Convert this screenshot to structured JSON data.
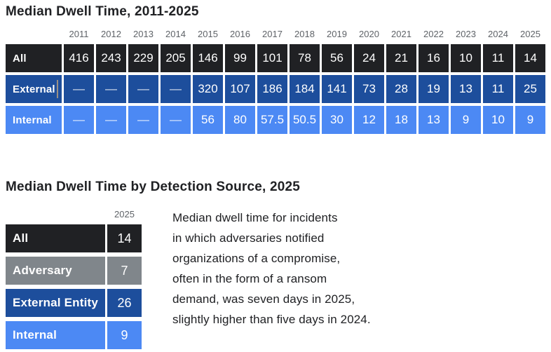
{
  "colors": {
    "row_black": "#202124",
    "row_gray": "#80868b",
    "row_dark_blue": "#1d4e9c",
    "row_light_blue": "#4c89f4",
    "year_text": "#5f6368",
    "title_text": "#202124",
    "body_text": "#202124",
    "caret": "#9c9184"
  },
  "section1": {
    "title": "Median Dwell Time, 2011-2025",
    "years": [
      "2011",
      "2012",
      "2013",
      "2014",
      "2015",
      "2016",
      "2017",
      "2018",
      "2019",
      "2020",
      "2021",
      "2022",
      "2023",
      "2024",
      "2025"
    ],
    "rows": [
      {
        "label": "All",
        "style": "row-black",
        "has_caret": false,
        "values": [
          "416",
          "243",
          "229",
          "205",
          "146",
          "99",
          "101",
          "78",
          "56",
          "24",
          "21",
          "16",
          "10",
          "11",
          "14"
        ]
      },
      {
        "label": "External",
        "style": "row-darkblue",
        "has_caret": true,
        "values": [
          "—",
          "—",
          "—",
          "—",
          "320",
          "107",
          "186",
          "184",
          "141",
          "73",
          "28",
          "19",
          "13",
          "11",
          "25"
        ]
      },
      {
        "label": "Internal",
        "style": "row-lightblue",
        "has_caret": false,
        "values": [
          "—",
          "—",
          "—",
          "—",
          "56",
          "80",
          "57.5",
          "50.5",
          "30",
          "12",
          "18",
          "13",
          "9",
          "10",
          "9"
        ]
      }
    ]
  },
  "section2": {
    "title": "Median Dwell Time by Detection Source, 2025",
    "column_header": "2025",
    "rows": [
      {
        "label": "All",
        "style": "row-black",
        "value": "14"
      },
      {
        "label": "Adversary",
        "style": "row-gray",
        "value": "7"
      },
      {
        "label": "External Entity",
        "style": "row-darkblue",
        "value": "26"
      },
      {
        "label": "Internal",
        "style": "row-lightblue",
        "value": "9"
      }
    ],
    "note": "Median dwell time for incidents\nin which adversaries notified\norganizations of a compromise,\noften in the form of a ransom\ndemand, was seven days in 2025,\nslightly higher than five days in 2024."
  },
  "chart_data": [
    {
      "type": "table",
      "title": "Median Dwell Time, 2011-2025",
      "columns": [
        "2011",
        "2012",
        "2013",
        "2014",
        "2015",
        "2016",
        "2017",
        "2018",
        "2019",
        "2020",
        "2021",
        "2022",
        "2023",
        "2024",
        "2025"
      ],
      "rows": [
        {
          "label": "All",
          "values": [
            416,
            243,
            229,
            205,
            146,
            99,
            101,
            78,
            56,
            24,
            21,
            16,
            10,
            11,
            14
          ]
        },
        {
          "label": "External",
          "values": [
            null,
            null,
            null,
            null,
            320,
            107,
            186,
            184,
            141,
            73,
            28,
            19,
            13,
            11,
            25
          ]
        },
        {
          "label": "Internal",
          "values": [
            null,
            null,
            null,
            null,
            56,
            80,
            57.5,
            50.5,
            30,
            12,
            18,
            13,
            9,
            10,
            9
          ]
        }
      ],
      "null_display": "—",
      "row_colors": [
        "#202124",
        "#1d4e9c",
        "#4c89f4"
      ]
    },
    {
      "type": "table",
      "title": "Median Dwell Time by Detection Source, 2025",
      "columns": [
        "2025"
      ],
      "rows": [
        {
          "label": "All",
          "values": [
            14
          ]
        },
        {
          "label": "Adversary",
          "values": [
            7
          ]
        },
        {
          "label": "External Entity",
          "values": [
            26
          ]
        },
        {
          "label": "Internal",
          "values": [
            9
          ]
        }
      ],
      "row_colors": [
        "#202124",
        "#80868b",
        "#1d4e9c",
        "#4c89f4"
      ]
    }
  ]
}
